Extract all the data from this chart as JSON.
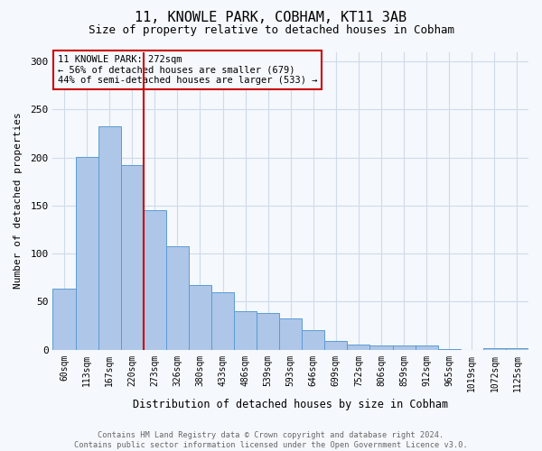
{
  "title": "11, KNOWLE PARK, COBHAM, KT11 3AB",
  "subtitle": "Size of property relative to detached houses in Cobham",
  "xlabel": "Distribution of detached houses by size in Cobham",
  "ylabel": "Number of detached properties",
  "categories": [
    "60sqm",
    "113sqm",
    "167sqm",
    "220sqm",
    "273sqm",
    "326sqm",
    "380sqm",
    "433sqm",
    "486sqm",
    "539sqm",
    "593sqm",
    "646sqm",
    "699sqm",
    "752sqm",
    "806sqm",
    "859sqm",
    "912sqm",
    "965sqm",
    "1019sqm",
    "1072sqm",
    "1125sqm"
  ],
  "values": [
    64,
    201,
    233,
    192,
    145,
    108,
    67,
    60,
    40,
    38,
    33,
    20,
    9,
    5,
    4,
    4,
    4,
    1,
    0,
    2,
    2
  ],
  "bar_color": "#aec6e8",
  "bar_edge_color": "#5b9bd5",
  "vline_color": "#cc0000",
  "vline_pos": 3.5,
  "annotation_text": "11 KNOWLE PARK: 272sqm\n← 56% of detached houses are smaller (679)\n44% of semi-detached houses are larger (533) →",
  "annotation_box_color": "#cc0000",
  "footer_text": "Contains HM Land Registry data © Crown copyright and database right 2024.\nContains public sector information licensed under the Open Government Licence v3.0.",
  "ylim": [
    0,
    310
  ],
  "yticks": [
    0,
    50,
    100,
    150,
    200,
    250,
    300
  ],
  "background_color": "#f5f8fc",
  "grid_color": "#d0daea"
}
